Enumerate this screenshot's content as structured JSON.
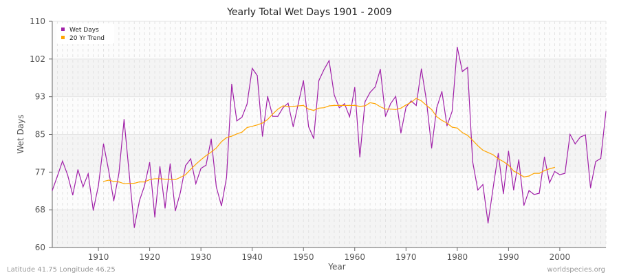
{
  "chart_data": {
    "type": "line",
    "title": "Yearly Total Wet Days 1901 - 2009",
    "xlabel": "Year",
    "ylabel": "Wet Days",
    "xlim": [
      1901,
      2009
    ],
    "ylim": [
      60,
      110
    ],
    "x_ticks": [
      1910,
      1920,
      1930,
      1940,
      1950,
      1960,
      1970,
      1980,
      1990,
      2000
    ],
    "y_ticks": [
      60,
      68,
      77,
      85,
      93,
      102,
      110
    ],
    "grid": true,
    "legend_position": "top-left",
    "series": [
      {
        "name": "Wet Days",
        "color": "#a020a8",
        "start_year": 1901,
        "values": [
          72.6,
          75.8,
          79.1,
          76.0,
          71.6,
          77.2,
          73.4,
          76.3,
          68.2,
          73.7,
          82.9,
          77.0,
          70.3,
          76.4,
          88.3,
          76.4,
          64.4,
          70.3,
          73.7,
          78.8,
          66.7,
          77.9,
          68.7,
          78.5,
          68.1,
          72.2,
          78.1,
          79.6,
          74.1,
          77.5,
          78.2,
          84.0,
          73.4,
          69.2,
          75.5,
          96.1,
          88.0,
          88.8,
          91.7,
          99.6,
          98.0,
          84.6,
          93.4,
          89.0,
          89.0,
          90.9,
          91.9,
          86.7,
          91.9,
          96.9,
          86.7,
          84.1,
          96.9,
          99.3,
          101.3,
          93.7,
          90.9,
          91.8,
          88.9,
          95.4,
          80.0,
          92.2,
          94.3,
          95.5,
          99.4,
          89.0,
          91.8,
          93.4,
          85.3,
          91.0,
          92.4,
          91.4,
          99.5,
          92.4,
          82.0,
          90.9,
          94.5,
          86.9,
          90.1,
          104.3,
          98.9,
          99.8,
          79.0,
          72.7,
          73.9,
          65.4,
          73.2,
          80.8,
          71.9,
          81.3,
          72.7,
          79.4,
          69.3,
          72.6,
          71.7,
          72.0,
          80.0,
          74.3,
          76.8,
          76.1,
          76.4,
          85.0,
          82.9,
          84.4,
          84.9,
          73.2,
          79.0,
          79.7,
          90.1
        ]
      },
      {
        "name": "20 Yr Trend",
        "color": "#ffa500",
        "start_year": 1911,
        "values": [
          74.6,
          74.9,
          74.6,
          74.5,
          74.1,
          74.2,
          74.2,
          74.5,
          74.5,
          75.0,
          75.2,
          75.2,
          75.1,
          75.1,
          75.0,
          75.5,
          76.1,
          77.3,
          78.4,
          79.4,
          80.3,
          81.1,
          82.0,
          83.4,
          84.3,
          84.6,
          85.1,
          85.5,
          86.5,
          86.8,
          87.1,
          87.5,
          88.3,
          89.5,
          90.6,
          91.3,
          91.2,
          91.2,
          91.3,
          91.4,
          90.6,
          90.3,
          90.8,
          90.9,
          91.3,
          91.4,
          91.4,
          91.4,
          91.4,
          91.4,
          91.2,
          91.3,
          92.0,
          91.8,
          91.1,
          90.6,
          90.6,
          90.5,
          90.8,
          91.5,
          92.1,
          93.0,
          92.4,
          91.4,
          90.5,
          88.9,
          88.1,
          87.5,
          86.6,
          86.4,
          85.4,
          84.8,
          83.7,
          82.5,
          81.5,
          81.0,
          80.5,
          79.6,
          79.0,
          78.2,
          76.9,
          76.3,
          75.6,
          75.8,
          76.4,
          76.4,
          77.0,
          77.4,
          77.7
        ]
      }
    ]
  },
  "footer": {
    "location": "Latitude 41.75 Longitude 46.25",
    "source": "worldspecies.org"
  }
}
